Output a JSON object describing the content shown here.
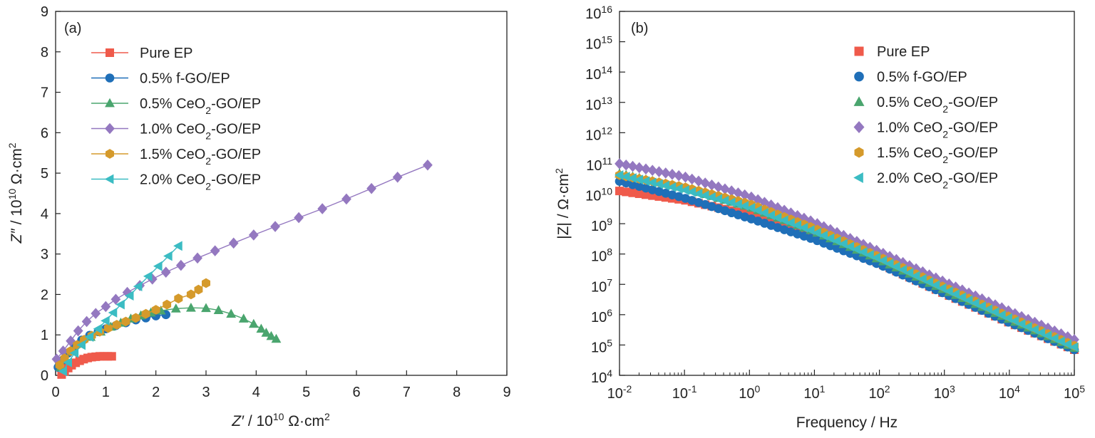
{
  "chart_data": [
    {
      "panel_label": "(a)",
      "type": "scatter",
      "xlabel": {
        "var": "Z′",
        "pre": " / 10",
        "exp": "10",
        "unit": " Ω·cm",
        "unit_exp": "2"
      },
      "ylabel": {
        "var": "Z″",
        "pre": " / 10",
        "exp": "10",
        "unit": " Ω·cm",
        "unit_exp": "2"
      },
      "xlim": [
        0,
        9
      ],
      "ylim": [
        0,
        9
      ],
      "xticks": [
        "0",
        "1",
        "2",
        "3",
        "4",
        "5",
        "6",
        "7",
        "8",
        "9"
      ],
      "yticks": [
        "0",
        "1",
        "2",
        "3",
        "4",
        "5",
        "6",
        "7",
        "8",
        "9"
      ],
      "legend_position": "top-left",
      "series": [
        {
          "name": "Pure EP",
          "name_parts": [
            "Pure EP"
          ],
          "color": "#ef5a4b",
          "marker": "square",
          "x": [
            0.12,
            0.18,
            0.25,
            0.32,
            0.4,
            0.48,
            0.56,
            0.64,
            0.72,
            0.8,
            0.88,
            0.96,
            1.04,
            1.12
          ],
          "y": [
            0.02,
            0.1,
            0.18,
            0.25,
            0.31,
            0.36,
            0.4,
            0.43,
            0.45,
            0.46,
            0.47,
            0.47,
            0.47,
            0.47
          ]
        },
        {
          "name": "0.5% f-GO/EP",
          "name_parts": [
            "0.5% f-GO/EP"
          ],
          "color": "#1f6fb8",
          "marker": "circle",
          "x": [
            0.05,
            0.15,
            0.25,
            0.38,
            0.52,
            0.68,
            0.85,
            1.0,
            1.2,
            1.4,
            1.6,
            1.8,
            2.0,
            2.2
          ],
          "y": [
            0.2,
            0.38,
            0.55,
            0.72,
            0.87,
            0.99,
            1.08,
            1.15,
            1.23,
            1.3,
            1.37,
            1.42,
            1.47,
            1.5
          ]
        },
        {
          "name": "0.5% CeO2-GO/EP",
          "name_parts": [
            "0.5% CeO",
            "2",
            "-GO/EP"
          ],
          "color": "#4aa56e",
          "marker": "triangle",
          "x": [
            0.1,
            0.2,
            0.35,
            0.5,
            0.7,
            0.9,
            1.1,
            1.3,
            1.5,
            1.7,
            1.9,
            2.1,
            2.4,
            2.7,
            3.0,
            3.25,
            3.5,
            3.75,
            3.95,
            4.1,
            4.2,
            4.3,
            4.4
          ],
          "y": [
            0.2,
            0.4,
            0.6,
            0.8,
            0.95,
            1.08,
            1.2,
            1.3,
            1.4,
            1.48,
            1.55,
            1.6,
            1.65,
            1.67,
            1.66,
            1.61,
            1.52,
            1.4,
            1.27,
            1.15,
            1.05,
            0.97,
            0.9
          ]
        },
        {
          "name": "1.0% CeO2-GO/EP",
          "name_parts": [
            "1.0% CeO",
            "2",
            "-GO/EP"
          ],
          "color": "#9478c0",
          "marker": "diamond",
          "x": [
            0.02,
            0.15,
            0.3,
            0.45,
            0.62,
            0.8,
            1.0,
            1.2,
            1.43,
            1.68,
            1.93,
            2.2,
            2.5,
            2.83,
            3.18,
            3.55,
            3.95,
            4.38,
            4.85,
            5.32,
            5.8,
            6.3,
            6.82,
            7.42
          ],
          "y": [
            0.4,
            0.6,
            0.85,
            1.1,
            1.33,
            1.53,
            1.7,
            1.88,
            2.05,
            2.22,
            2.38,
            2.55,
            2.72,
            2.9,
            3.08,
            3.27,
            3.47,
            3.68,
            3.9,
            4.12,
            4.36,
            4.62,
            4.9,
            5.2
          ]
        },
        {
          "name": "1.5% CeO2-GO/EP",
          "name_parts": [
            "1.5% CeO",
            "2",
            "-GO/EP"
          ],
          "color": "#d59a2b",
          "marker": "hexagon",
          "x": [
            0.08,
            0.18,
            0.3,
            0.43,
            0.57,
            0.72,
            0.88,
            1.05,
            1.22,
            1.4,
            1.6,
            1.8,
            2.0,
            2.22,
            2.45,
            2.7,
            2.85,
            3.0
          ],
          "y": [
            0.25,
            0.42,
            0.6,
            0.75,
            0.88,
            0.98,
            1.08,
            1.17,
            1.25,
            1.33,
            1.42,
            1.52,
            1.62,
            1.75,
            1.9,
            2.0,
            2.12,
            2.28
          ]
        },
        {
          "name": "2.0% CeO2-GO/EP",
          "name_parts": [
            "2.0% CeO",
            "2",
            "-GO/EP"
          ],
          "color": "#3bbcc3",
          "marker": "triangle-left",
          "x": [
            0.15,
            0.25,
            0.38,
            0.52,
            0.68,
            0.85,
            1.0,
            1.15,
            1.3,
            1.48,
            1.65,
            1.85,
            2.05,
            2.25,
            2.45
          ],
          "y": [
            0.1,
            0.32,
            0.55,
            0.75,
            0.95,
            1.15,
            1.35,
            1.55,
            1.75,
            1.97,
            2.2,
            2.45,
            2.7,
            2.95,
            3.2
          ]
        }
      ]
    },
    {
      "panel_label": "(b)",
      "type": "scatter",
      "xscale": "log",
      "yscale": "log",
      "xlabel": "Frequency / Hz",
      "ylabel": {
        "var": "|Z|",
        "pre": " / ",
        "unit": "Ω·cm",
        "unit_exp": "2"
      },
      "xlim": [
        0.01,
        100000
      ],
      "ylim": [
        10000,
        10000000000000000
      ],
      "xticks": [
        {
          "base": "10",
          "exp": "-2"
        },
        {
          "base": "10",
          "exp": "-1"
        },
        {
          "base": "10",
          "exp": "0"
        },
        {
          "base": "10",
          "exp": "1"
        },
        {
          "base": "10",
          "exp": "2"
        },
        {
          "base": "10",
          "exp": "3"
        },
        {
          "base": "10",
          "exp": "4"
        },
        {
          "base": "10",
          "exp": "5"
        }
      ],
      "yticks": [
        {
          "base": "10",
          "exp": "4"
        },
        {
          "base": "10",
          "exp": "5"
        },
        {
          "base": "10",
          "exp": "6"
        },
        {
          "base": "10",
          "exp": "7"
        },
        {
          "base": "10",
          "exp": "8"
        },
        {
          "base": "10",
          "exp": "9"
        },
        {
          "base": "10",
          "exp": "10"
        },
        {
          "base": "10",
          "exp": "11"
        },
        {
          "base": "10",
          "exp": "12"
        },
        {
          "base": "10",
          "exp": "13"
        },
        {
          "base": "10",
          "exp": "14"
        },
        {
          "base": "10",
          "exp": "15"
        },
        {
          "base": "10",
          "exp": "16"
        }
      ],
      "legend_position": "top-right",
      "series": [
        {
          "name": "Pure EP",
          "name_parts": [
            "Pure EP"
          ],
          "color": "#ef5a4b",
          "marker": "square",
          "x": [
            0.01,
            0.1,
            1,
            10,
            100,
            1000,
            10000,
            100000
          ],
          "y": [
            12000000000,
            6000000000,
            2000000000,
            400000000,
            50000000,
            5000000,
            550000,
            70000
          ]
        },
        {
          "name": "0.5% f-GO/EP",
          "name_parts": [
            "0.5% f-GO/EP"
          ],
          "color": "#1f6fb8",
          "marker": "circle",
          "x": [
            0.01,
            0.1,
            1,
            10,
            100,
            1000,
            10000,
            100000
          ],
          "y": [
            25000000000,
            7000000000,
            1500000000,
            300000000,
            45000000,
            5000000,
            550000,
            70000
          ]
        },
        {
          "name": "0.5% CeO2-GO/EP",
          "name_parts": [
            "0.5% CeO",
            "2",
            "-GO/EP"
          ],
          "color": "#4aa56e",
          "marker": "triangle",
          "x": [
            0.01,
            0.1,
            1,
            10,
            100,
            1000,
            10000,
            100000
          ],
          "y": [
            45000000000,
            15000000000,
            3500000000,
            550000000,
            65000000,
            6500000,
            700000,
            80000
          ]
        },
        {
          "name": "1.0% CeO2-GO/EP",
          "name_parts": [
            "1.0% CeO",
            "2",
            "-GO/EP"
          ],
          "color": "#9478c0",
          "marker": "diamond",
          "x": [
            0.01,
            0.1,
            1,
            10,
            100,
            1000,
            10000,
            100000
          ],
          "y": [
            95000000000,
            35000000000,
            8000000000,
            1100000000,
            120000000,
            12000000,
            1300000,
            150000
          ]
        },
        {
          "name": "1.5% CeO2-GO/EP",
          "name_parts": [
            "1.5% CeO",
            "2",
            "-GO/EP"
          ],
          "color": "#d59a2b",
          "marker": "hexagon",
          "x": [
            0.01,
            0.1,
            1,
            10,
            100,
            1000,
            10000,
            100000
          ],
          "y": [
            40000000000,
            16000000000,
            4500000000,
            700000000,
            80000000,
            8000000,
            850000,
            95000
          ]
        },
        {
          "name": "2.0% CeO2-GO/EP",
          "name_parts": [
            "2.0% CeO",
            "2",
            "-GO/EP"
          ],
          "color": "#3bbcc3",
          "marker": "triangle-left",
          "x": [
            0.01,
            0.1,
            1,
            10,
            100,
            1000,
            10000,
            100000
          ],
          "y": [
            40000000000,
            13000000000,
            3500000000,
            550000000,
            70000000,
            7000000,
            750000,
            85000
          ]
        }
      ]
    }
  ]
}
